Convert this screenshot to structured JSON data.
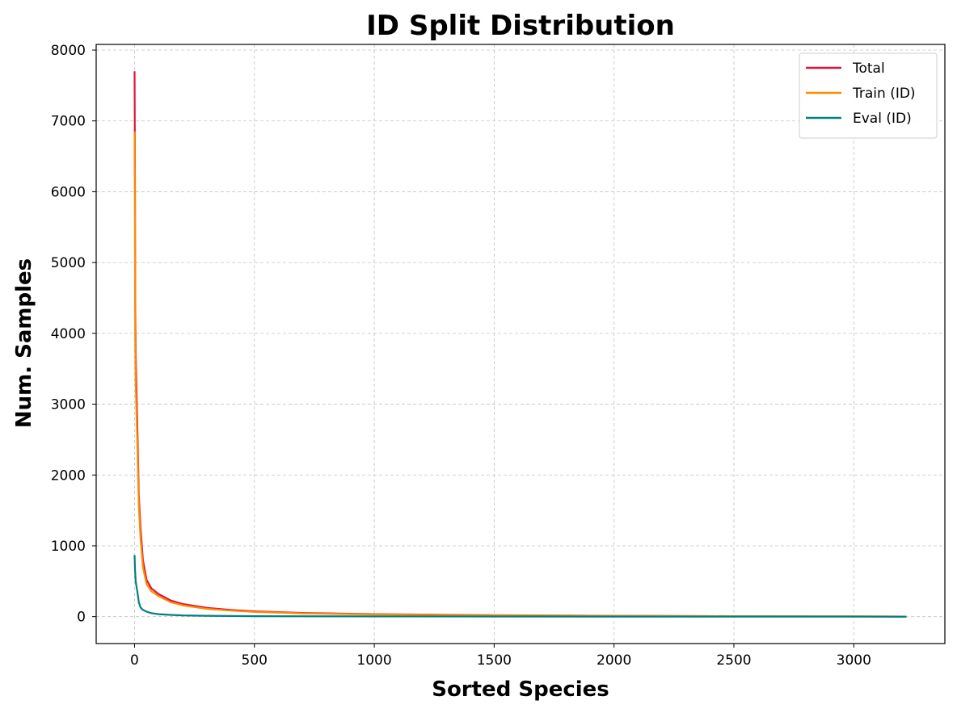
{
  "chart_data": {
    "type": "line",
    "title": "ID Split Distribution",
    "xlabel": "Sorted Species",
    "ylabel": "Num. Samples",
    "xlim": [
      -160,
      3380
    ],
    "ylim": [
      -380,
      8080
    ],
    "xticks": [
      0,
      500,
      1000,
      1500,
      2000,
      2500,
      3000
    ],
    "yticks": [
      0,
      1000,
      2000,
      3000,
      4000,
      5000,
      6000,
      7000,
      8000
    ],
    "xtick_labels": [
      "0",
      "500",
      "1000",
      "1500",
      "2000",
      "2500",
      "3000"
    ],
    "ytick_labels": [
      "0",
      "1000",
      "2000",
      "3000",
      "4000",
      "5000",
      "6000",
      "7000",
      "8000"
    ],
    "grid": true,
    "legend_position": "top-right",
    "series": [
      {
        "name": "Total",
        "color": "#dc143c",
        "x": [
          0,
          1,
          2,
          3,
          5,
          8,
          12,
          18,
          25,
          35,
          50,
          70,
          100,
          150,
          200,
          300,
          400,
          500,
          700,
          1000,
          1500,
          2000,
          2500,
          3000,
          3220
        ],
        "y": [
          7700,
          6800,
          5600,
          4450,
          3700,
          3250,
          2650,
          1700,
          1250,
          800,
          520,
          400,
          320,
          230,
          180,
          125,
          95,
          75,
          52,
          35,
          20,
          12,
          7,
          3,
          1
        ]
      },
      {
        "name": "Train (ID)",
        "color": "#ff8c00",
        "x": [
          0,
          1,
          2,
          3,
          5,
          8,
          12,
          18,
          25,
          35,
          50,
          70,
          100,
          150,
          200,
          300,
          400,
          500,
          700,
          1000,
          1500,
          2000,
          2500,
          3000,
          3220
        ],
        "y": [
          6850,
          6000,
          4800,
          3950,
          3300,
          2900,
          2400,
          1550,
          1100,
          700,
          460,
          360,
          290,
          205,
          160,
          110,
          85,
          67,
          46,
          31,
          18,
          11,
          6,
          3,
          1
        ]
      },
      {
        "name": "Eval (ID)",
        "color": "#008080",
        "x": [
          0,
          2,
          5,
          8,
          12,
          18,
          25,
          35,
          50,
          70,
          100,
          150,
          200,
          300,
          500,
          1000,
          1500,
          2000,
          2500,
          3000,
          3220
        ],
        "y": [
          870,
          650,
          500,
          430,
          350,
          200,
          130,
          95,
          70,
          50,
          35,
          25,
          18,
          12,
          7,
          3,
          2,
          1,
          1,
          0,
          0
        ]
      }
    ]
  }
}
